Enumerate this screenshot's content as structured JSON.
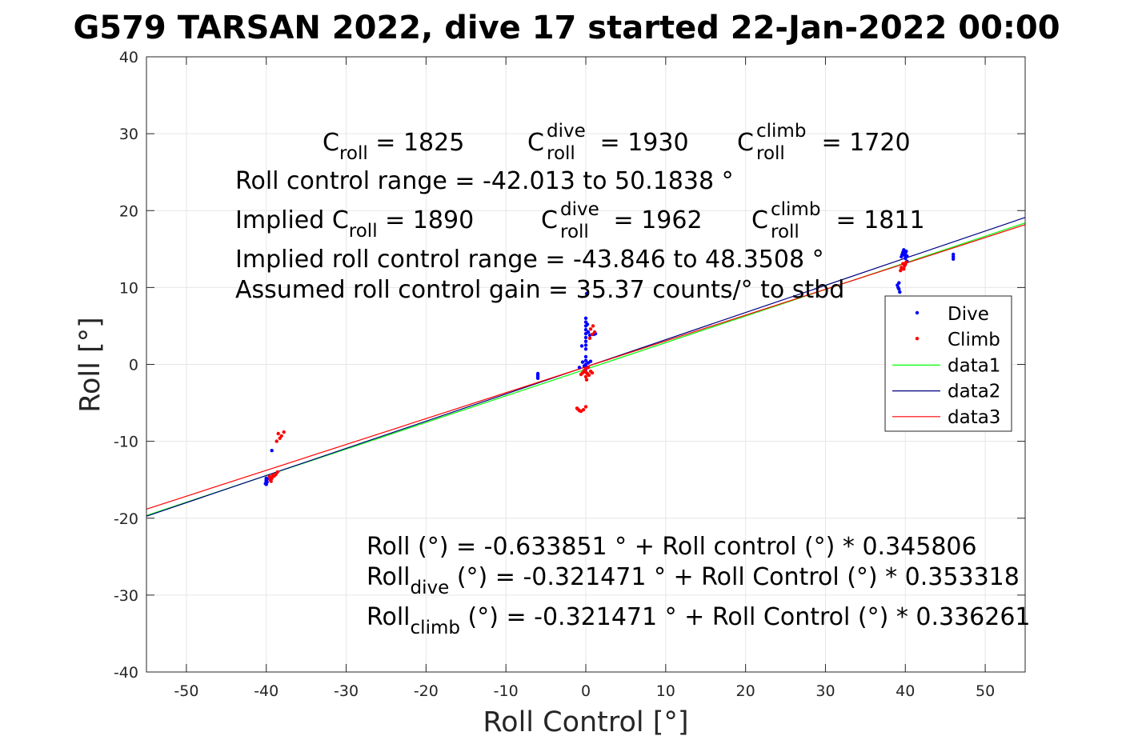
{
  "chart_data": {
    "type": "scatter",
    "title": "G579 TARSAN 2022, dive 17 started 22-Jan-2022 00:00",
    "xlabel": "Roll Control [°]",
    "ylabel": "Roll [°]",
    "xlim": [
      -55,
      55
    ],
    "ylim": [
      -40,
      40
    ],
    "xticks": [
      -50,
      -40,
      -30,
      -20,
      -10,
      0,
      10,
      20,
      30,
      40,
      50
    ],
    "yticks": [
      -40,
      -30,
      -20,
      -10,
      0,
      10,
      20,
      30,
      40
    ],
    "grid": true,
    "legend_position": "right",
    "annotations": {
      "line1": {
        "a": {
          "base": "C",
          "sub": "roll",
          "rest": " = 1825"
        },
        "b": {
          "base": "C",
          "sub": "roll",
          "sup": "dive",
          "rest": " = 1930"
        },
        "c": {
          "base": "C",
          "sub": "roll",
          "sup": "climb",
          "rest": " = 1720"
        }
      },
      "line2": "Roll control range = -42.013 to 50.1838 °",
      "line3": {
        "a": {
          "pre": "Implied ",
          "base": "C",
          "sub": "roll",
          "rest": " = 1890"
        },
        "b": {
          "base": "C",
          "sub": "roll",
          "sup": "dive",
          "rest": " = 1962"
        },
        "c": {
          "base": "C",
          "sub": "roll",
          "sup": "climb",
          "rest": " = 1811"
        }
      },
      "line4": "Implied roll control range = -43.846 to 48.3508 °",
      "line5": "Assumed roll control gain = 35.37 counts/° to stbd",
      "fit1": "Roll (°) = -0.633851 ° + Roll control (°) * 0.345806",
      "fit2": {
        "base": "Roll",
        "sub": "dive",
        "rest": " (°) = -0.321471 ° + Roll Control (°) * 0.353318"
      },
      "fit3": {
        "base": "Roll",
        "sub": "climb",
        "rest": " (°) = -0.321471 ° + Roll Control (°) * 0.336261"
      }
    },
    "series": [
      {
        "name": "Dive",
        "kind": "points",
        "color": "#0000ff",
        "points": [
          [
            -40,
            -14.8
          ],
          [
            -40,
            -15
          ],
          [
            -40,
            -15.2
          ],
          [
            -40,
            -15.4
          ],
          [
            -40,
            -15.6
          ],
          [
            -40,
            -15.1
          ],
          [
            -39.9,
            -15.3
          ],
          [
            -39.9,
            -14.9
          ],
          [
            -40.1,
            -15.5
          ],
          [
            -39.3,
            -11.2
          ],
          [
            -6,
            -1.2
          ],
          [
            -6,
            -1.4
          ],
          [
            -6,
            -1.6
          ],
          [
            -6,
            -1.8
          ],
          [
            0,
            6
          ],
          [
            0,
            5.5
          ],
          [
            0,
            5
          ],
          [
            0,
            4.5
          ],
          [
            0,
            4
          ],
          [
            0,
            3.5
          ],
          [
            0,
            3
          ],
          [
            0,
            2.5
          ],
          [
            0,
            2
          ],
          [
            0,
            1
          ],
          [
            0,
            0.5
          ],
          [
            0,
            0
          ],
          [
            0,
            -0.3
          ],
          [
            0,
            -0.6
          ],
          [
            0,
            -1
          ],
          [
            0.1,
            9.2
          ],
          [
            0.2,
            5.2
          ],
          [
            0.3,
            4.2
          ],
          [
            0.5,
            3.8
          ],
          [
            1,
            3.9
          ],
          [
            1.2,
            4
          ],
          [
            -0.5,
            2.4
          ],
          [
            -0.4,
            0.3
          ],
          [
            -0.2,
            -0.2
          ],
          [
            0.3,
            0.2
          ],
          [
            0.6,
            0.4
          ],
          [
            -0.8,
            -0.4
          ],
          [
            39,
            10.3
          ],
          [
            39.1,
            10
          ],
          [
            39.2,
            9.8
          ],
          [
            39.3,
            9.4
          ],
          [
            39.2,
            10.6
          ],
          [
            39.5,
            14
          ],
          [
            39.6,
            14.3
          ],
          [
            39.7,
            14.6
          ],
          [
            39.8,
            14.9
          ],
          [
            39.9,
            14.2
          ],
          [
            40,
            14.5
          ],
          [
            40,
            13.8
          ],
          [
            40.1,
            14.7
          ],
          [
            40.2,
            14.1
          ],
          [
            40.2,
            13.4
          ],
          [
            46,
            14.3
          ],
          [
            46,
            14
          ],
          [
            46,
            13.7
          ]
        ]
      },
      {
        "name": "Climb",
        "kind": "points",
        "color": "#ff0000",
        "points": [
          [
            -38.5,
            -9
          ],
          [
            -38.3,
            -9.6
          ],
          [
            -38.1,
            -9.3
          ],
          [
            -37.8,
            -8.8
          ],
          [
            -38.7,
            -10
          ],
          [
            -39,
            -14.5
          ],
          [
            -39.3,
            -14.8
          ],
          [
            -39.5,
            -15
          ],
          [
            -39.6,
            -14.6
          ],
          [
            -39.2,
            -14.4
          ],
          [
            -38.8,
            -14.3
          ],
          [
            -38.6,
            -14
          ],
          [
            -39.4,
            -15.2
          ],
          [
            -1,
            -5.8
          ],
          [
            -0.8,
            -6
          ],
          [
            -0.6,
            -6.1
          ],
          [
            -0.3,
            -5.9
          ],
          [
            0,
            -5.5
          ],
          [
            -1.1,
            -5.7
          ],
          [
            0,
            -1
          ],
          [
            0.2,
            -1.2
          ],
          [
            -0.2,
            -0.8
          ],
          [
            0.4,
            -1.4
          ],
          [
            -0.4,
            -1.1
          ],
          [
            0.6,
            -0.9
          ],
          [
            -0.6,
            -1.3
          ],
          [
            0.8,
            -1.1
          ],
          [
            0,
            -0.5
          ],
          [
            0,
            -1.6
          ],
          [
            0.3,
            -0.4
          ],
          [
            0.1,
            -2
          ],
          [
            0.5,
            3.4
          ],
          [
            0.8,
            3.9
          ],
          [
            1.1,
            4.2
          ],
          [
            0.6,
            4.6
          ],
          [
            0.9,
            5
          ],
          [
            39.5,
            12.6
          ],
          [
            39.7,
            13.1
          ],
          [
            39.9,
            12.8
          ],
          [
            40.1,
            13.3
          ],
          [
            39.4,
            12.2
          ],
          [
            39.8,
            12.4
          ],
          [
            40,
            13
          ]
        ]
      },
      {
        "name": "data1",
        "kind": "line",
        "color": "#00ff00",
        "x": [
          -55,
          55
        ],
        "y": [
          -19.65,
          18.39
        ]
      },
      {
        "name": "data2",
        "kind": "line",
        "color": "#000080",
        "x": [
          -55,
          55
        ],
        "y": [
          -19.75,
          19.11
        ]
      },
      {
        "name": "data3",
        "kind": "line",
        "color": "#ff0000",
        "x": [
          -55,
          55
        ],
        "y": [
          -18.82,
          18.17
        ]
      }
    ]
  }
}
